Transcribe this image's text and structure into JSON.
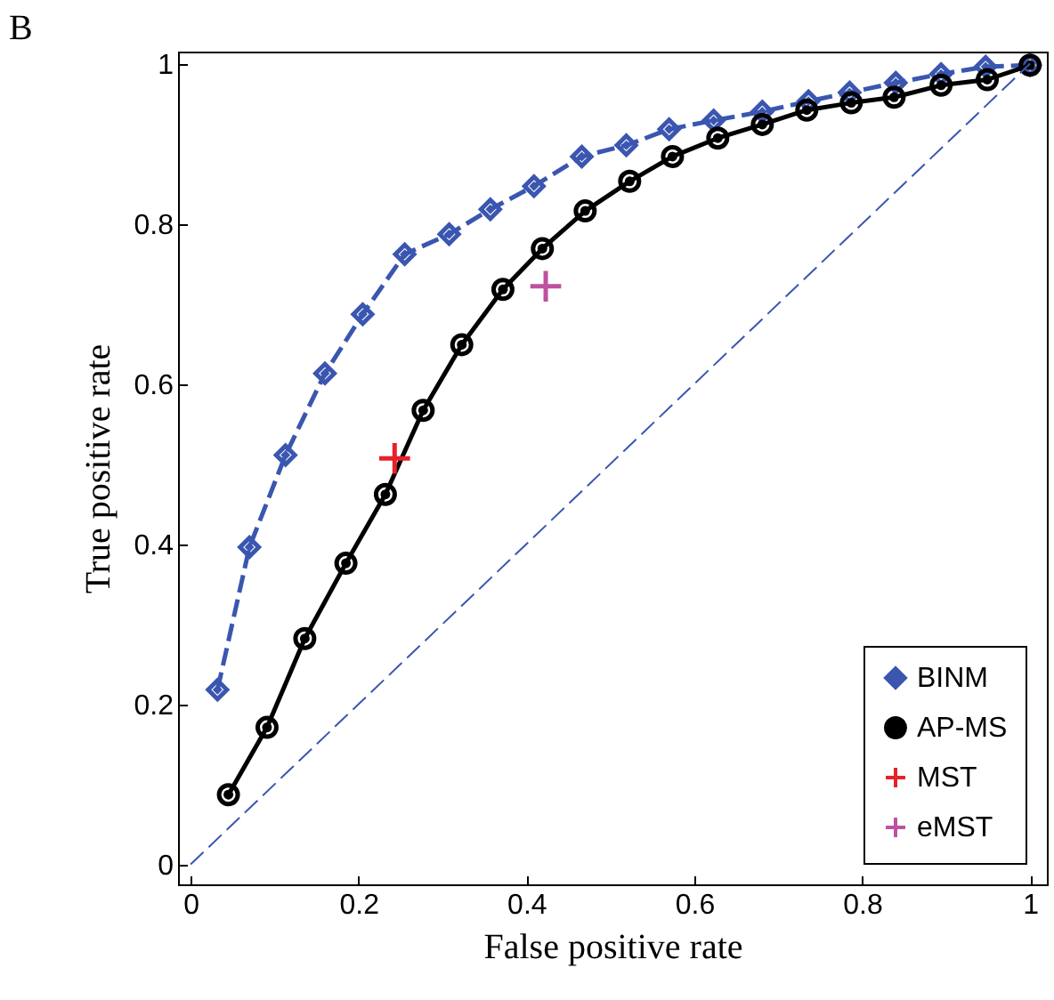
{
  "chart_data": {
    "type": "line",
    "xlabel": "False positive rate",
    "ylabel": "True positive rate",
    "annotations": [
      "B"
    ],
    "xlim": [
      -0.015,
      1.02
    ],
    "ylim": [
      -0.025,
      1.015
    ],
    "xticks": [
      0,
      0.2,
      0.4,
      0.6,
      0.8,
      1
    ],
    "yticks": [
      0,
      0.2,
      0.4,
      0.6,
      0.8,
      1
    ],
    "legend": "bottom right",
    "series": [
      {
        "name": "BINM",
        "color": "#3a56b0",
        "marker": "diamond",
        "line_style": "dashed",
        "x": [
          0.032,
          0.07,
          0.113,
          0.16,
          0.205,
          0.255,
          0.308,
          0.357,
          0.409,
          0.466,
          0.519,
          0.57,
          0.623,
          0.681,
          0.736,
          0.785,
          0.84,
          0.894,
          0.947,
          1.0
        ],
        "values": [
          0.218,
          0.396,
          0.511,
          0.613,
          0.687,
          0.762,
          0.787,
          0.818,
          0.847,
          0.884,
          0.898,
          0.918,
          0.929,
          0.94,
          0.953,
          0.964,
          0.976,
          0.987,
          0.996,
          0.998
        ]
      },
      {
        "name": "AP-MS",
        "color": "#000000",
        "marker": "circle",
        "line_style": "solid",
        "x": [
          0.045,
          0.091,
          0.136,
          0.185,
          0.232,
          0.277,
          0.323,
          0.372,
          0.419,
          0.47,
          0.523,
          0.574,
          0.628,
          0.681,
          0.734,
          0.787,
          0.838,
          0.894,
          0.949,
          1.0
        ],
        "values": [
          0.087,
          0.171,
          0.282,
          0.376,
          0.462,
          0.567,
          0.649,
          0.718,
          0.769,
          0.816,
          0.853,
          0.884,
          0.907,
          0.924,
          0.942,
          0.951,
          0.958,
          0.973,
          0.98,
          0.998
        ]
      },
      {
        "name": "MST",
        "type": "scatter",
        "color": "#e8202a",
        "marker": "cross",
        "x": [
          0.243
        ],
        "values": [
          0.507
        ]
      },
      {
        "name": "eMST",
        "type": "scatter",
        "color": "#c050a0",
        "marker": "cross",
        "x": [
          0.423
        ],
        "values": [
          0.722
        ]
      },
      {
        "color": "#3a56b0",
        "line_style": "dashed",
        "x": [
          0,
          1
        ],
        "values": [
          0,
          1
        ]
      }
    ]
  }
}
